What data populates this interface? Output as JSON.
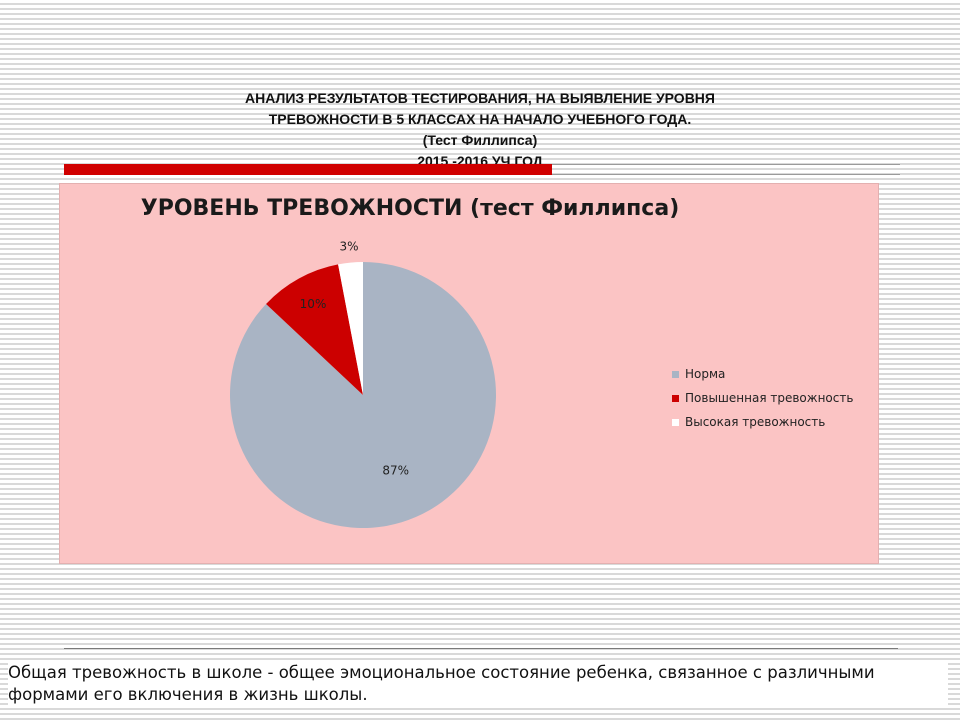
{
  "slide": {
    "title_lines": [
      "АНАЛИЗ РЕЗУЛЬТАТОВ ТЕСТИРОВАНИЯ, НА ВЫЯВЛЕНИЕ УРОВНЯ",
      "ТРЕВОЖНОСТИ В 5 КЛАССАХ  НА НАЧАЛО УЧЕБНОГО ГОДА.",
      "(Тест Филлипса)",
      "2015 -2016 УЧ.ГОД"
    ],
    "footer_text": "Общая тревожность в школе - общее эмоциональное состояние ребенка, связанное с различными формами его включения в жизнь школы."
  },
  "chart_data": {
    "type": "pie",
    "title": "УРОВЕНЬ ТРЕВОЖНОСТИ (тест Филлипса)",
    "categories": [
      "Норма",
      "Повышенная тревожность",
      "Высокая тревожность"
    ],
    "values": [
      87,
      10,
      3
    ],
    "labels": [
      "87%",
      "10%",
      "3%"
    ],
    "colors": [
      "#a9b4c4",
      "#cc0000",
      "#ffffff"
    ],
    "legend_position": "right",
    "background": "#fbc4c4"
  }
}
